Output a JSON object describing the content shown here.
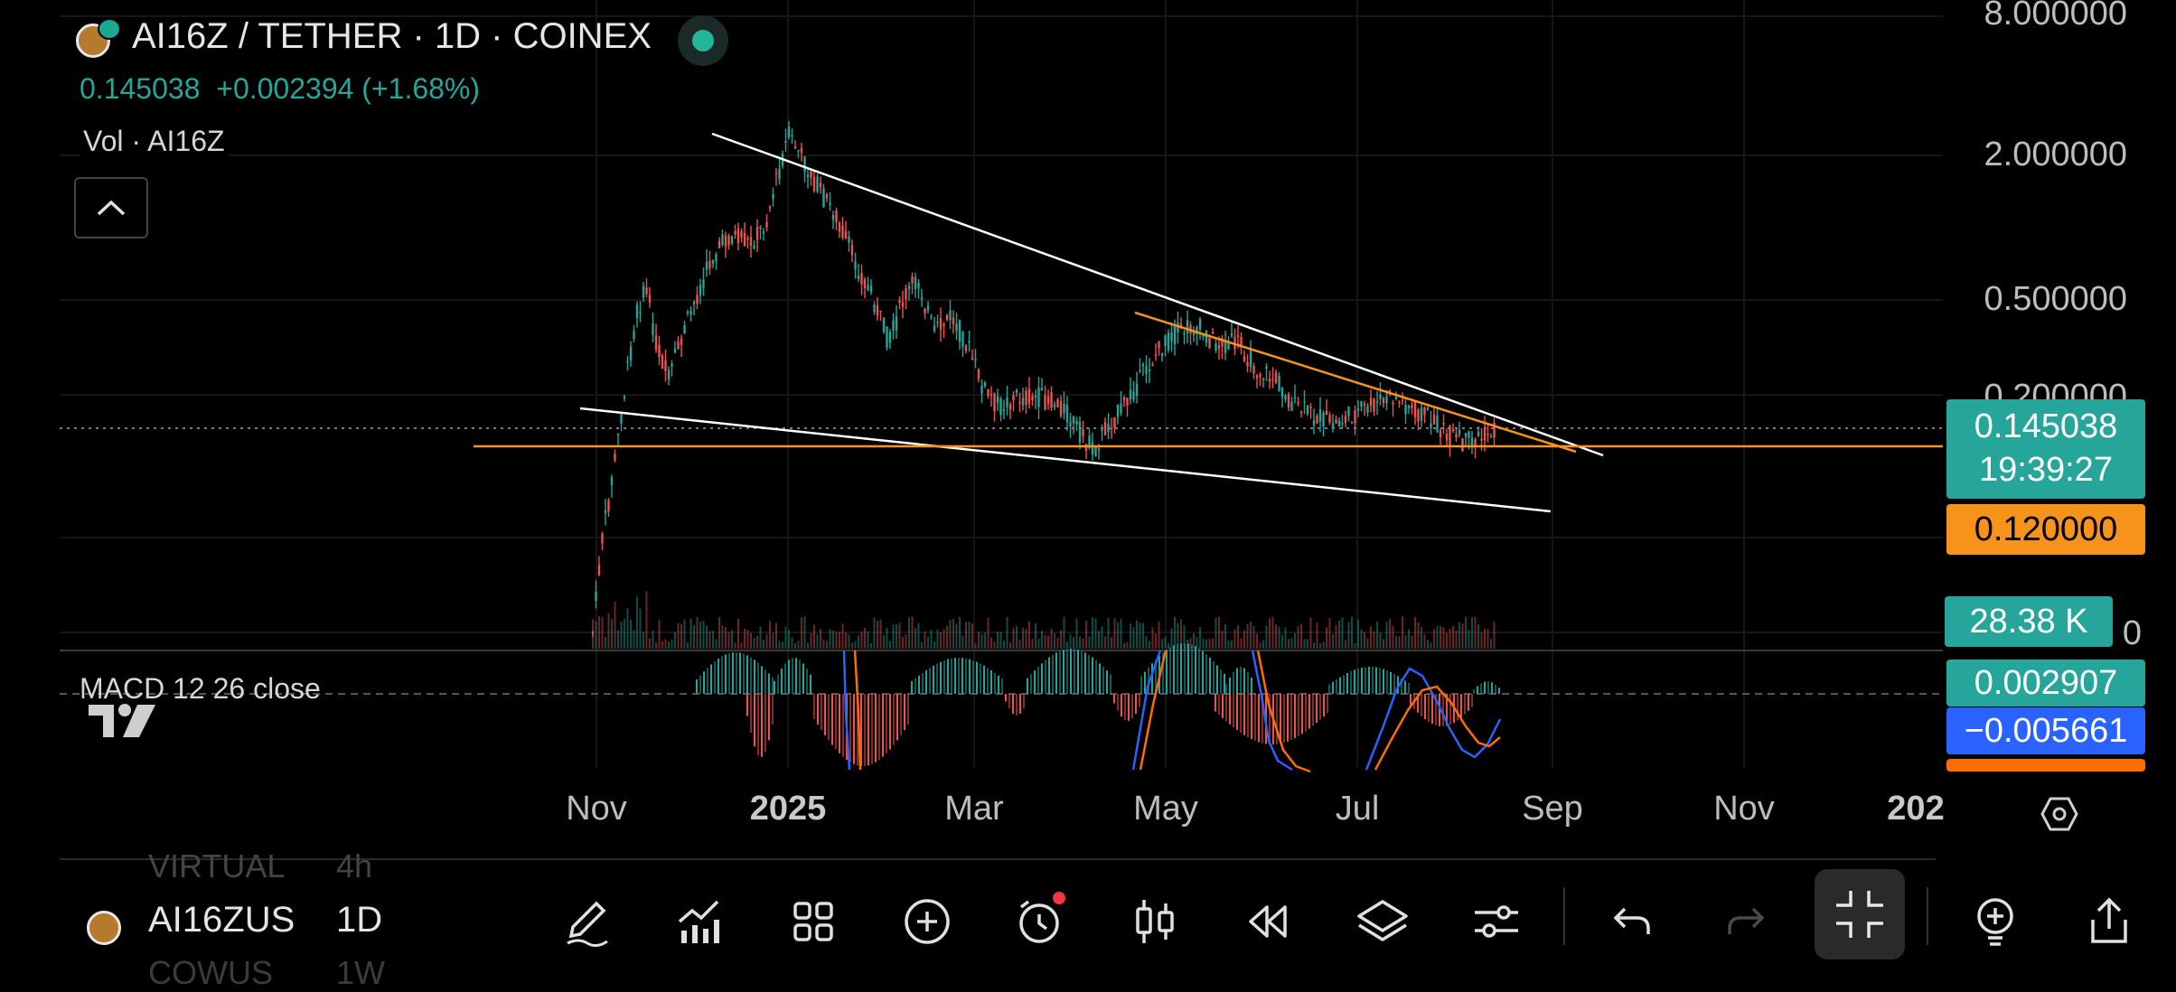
{
  "header": {
    "title": "AI16Z / TETHER · 1D · COINEX",
    "last_price": "0.145038",
    "change": "+0.002394 (+1.68%)",
    "volume_label": "Vol · AI16Z"
  },
  "price_axis": [
    "8.000000",
    "2.000000",
    "0.500000",
    "0.200000"
  ],
  "volume_axis_partial": "0",
  "price_tags": {
    "last": "0.145038",
    "countdown": "19:39:27",
    "horizontal_line": "0.120000",
    "volume": "28.38 K",
    "macd_hist": "0.002907",
    "macd_line": "−0.005661"
  },
  "macd": {
    "label": "MACD 12 26 close"
  },
  "time_axis": [
    "Nov",
    "2025",
    "Mar",
    "May",
    "Jul",
    "Sep",
    "Nov",
    "202"
  ],
  "bottom_bar": {
    "symbol": "AI16ZUS",
    "interval": "1D",
    "ghost_above_symbol": "VIRTUAL",
    "ghost_above_interval": "4h",
    "ghost_below_symbol": "COWUS",
    "ghost_below_interval": "1W"
  },
  "toolbar": [
    "draw-tool",
    "indicators",
    "layouts",
    "add",
    "alert",
    "chart-type",
    "replay",
    "objects",
    "settings",
    "undo",
    "redo",
    "fullscreen-exit",
    "add-idea",
    "share"
  ],
  "colors": {
    "up": "#26a69a",
    "down": "#ef5350",
    "accent_orange": "#f7931a",
    "macd_blue": "#2962ff",
    "signal_orange": "#ff6d00"
  }
}
